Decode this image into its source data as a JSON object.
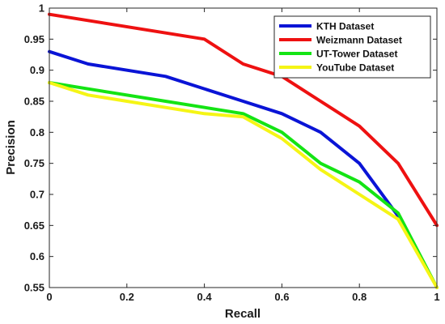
{
  "chart_data": {
    "type": "line",
    "title": "",
    "xlabel": "Recall",
    "ylabel": "Precision",
    "xlim": [
      0,
      1
    ],
    "ylim": [
      0.55,
      1
    ],
    "xticks": [
      0,
      0.2,
      0.4,
      0.6,
      0.8,
      1
    ],
    "xtick_labels": [
      "0",
      "0.2",
      "0.4",
      "0.6",
      "0.8",
      "1"
    ],
    "yticks": [
      0.55,
      0.6,
      0.65,
      0.7,
      0.75,
      0.8,
      0.85,
      0.9,
      0.95,
      1
    ],
    "ytick_labels": [
      "0.55",
      "0.6",
      "0.65",
      "0.7",
      "0.75",
      "0.8",
      "0.85",
      "0.9",
      "0.95",
      "1"
    ],
    "grid": false,
    "legend_position": "top-right",
    "series": [
      {
        "name": "KTH Dataset",
        "color": "#0a14d6",
        "x": [
          0,
          0.1,
          0.3,
          0.5,
          0.6,
          0.7,
          0.8,
          0.9
        ],
        "y": [
          0.93,
          0.91,
          0.89,
          0.85,
          0.83,
          0.8,
          0.75,
          0.665
        ]
      },
      {
        "name": "Weizmann Dataset",
        "color": "#ee1111",
        "x": [
          0,
          0.4,
          0.5,
          0.6,
          0.7,
          0.8,
          0.9,
          1
        ],
        "y": [
          0.99,
          0.95,
          0.91,
          0.89,
          0.85,
          0.81,
          0.75,
          0.65
        ]
      },
      {
        "name": "UT-Tower Dataset",
        "color": "#14e414",
        "x": [
          0,
          0.1,
          0.3,
          0.5,
          0.6,
          0.7,
          0.8,
          0.9,
          1
        ],
        "y": [
          0.88,
          0.87,
          0.85,
          0.83,
          0.8,
          0.75,
          0.72,
          0.67,
          0.55
        ]
      },
      {
        "name": "YouTube Dataset",
        "color": "#f5f515",
        "x": [
          0,
          0.1,
          0.3,
          0.4,
          0.5,
          0.6,
          0.7,
          0.8,
          0.9,
          1
        ],
        "y": [
          0.88,
          0.86,
          0.84,
          0.83,
          0.825,
          0.79,
          0.74,
          0.7,
          0.66,
          0.55
        ]
      }
    ]
  }
}
